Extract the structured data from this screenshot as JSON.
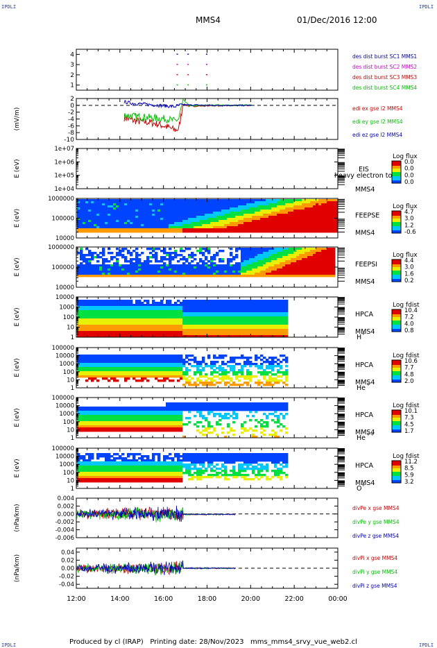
{
  "corners": {
    "tl": "IPDLI",
    "tr": "IPDLI",
    "bl": "IPDLI",
    "br": "IPDLI"
  },
  "header": {
    "title": "MMS4",
    "datetime": "01/Dec/2016 12:00"
  },
  "footer": {
    "text": "Produced by cl (IRAP)   Printing date: 28/Nov/2023   mms_mms4_srvy_vue_web2.cl"
  },
  "chart_data": [
    {
      "type": "scatter",
      "panel": "burst",
      "yticks": [
        "1",
        "2",
        "3",
        "4"
      ],
      "ylim": [
        0.5,
        4.5
      ],
      "series": [
        {
          "name": "des dist burst SC1 MMS1",
          "color": "#0000b4",
          "y": 4,
          "x": [
            16.6,
            17.1,
            17.95
          ]
        },
        {
          "name": "des dist burst SC2 MMS2",
          "color": "#d000d0",
          "y": 3,
          "x": [
            16.6,
            17.1,
            17.95
          ]
        },
        {
          "name": "des dist burst SC3 MMS3",
          "color": "#d00000",
          "y": 2,
          "x": [
            16.6,
            17.1,
            17.95
          ]
        },
        {
          "name": "des dist burst SC4 MMS4",
          "color": "#00c000",
          "y": 1,
          "x": [
            16.6,
            17.1,
            17.95
          ]
        }
      ]
    },
    {
      "type": "line",
      "panel": "edi",
      "ylabel": "(mV/m)",
      "yticks": [
        "2",
        "0",
        "-2",
        "-4",
        "-6",
        "-8",
        "-10"
      ],
      "ylim": [
        -10,
        2
      ],
      "series": [
        {
          "name": "edi ex gse l2 MMS4",
          "color": "#d00000",
          "x": [
            14.2,
            14.6,
            15.0,
            15.4,
            15.8,
            16.2,
            16.5,
            16.7,
            16.9,
            17.2,
            17.6,
            18.2,
            19.0,
            20.1
          ],
          "y": [
            -3.6,
            -4.4,
            -4.8,
            -5.0,
            -5.6,
            -6.4,
            -7.2,
            -7.0,
            0.4,
            -0.3,
            -0.2,
            -0.1,
            -0.1,
            0
          ]
        },
        {
          "name": "edi ey gse l2 MMS4",
          "color": "#00c000",
          "x": [
            14.2,
            14.6,
            15.0,
            15.4,
            15.8,
            16.2,
            16.5,
            16.7,
            16.9,
            17.2,
            17.6,
            18.2,
            19.0,
            20.1
          ],
          "y": [
            -2.8,
            -3.2,
            -3.4,
            -3.6,
            -3.8,
            -4.0,
            -4.6,
            -4.0,
            1.6,
            -0.2,
            -0.1,
            0.1,
            0,
            0
          ]
        },
        {
          "name": "edi ez gse l2 MMS4",
          "color": "#0000c8",
          "x": [
            14.2,
            14.6,
            15.0,
            15.4,
            15.8,
            16.2,
            16.5,
            16.7,
            16.9,
            17.2,
            17.6,
            18.2,
            19.0,
            20.1
          ],
          "y": [
            1.0,
            0.6,
            0.4,
            0.2,
            0,
            -0.2,
            -0.4,
            0,
            0.2,
            0.1,
            0.1,
            0,
            0,
            0
          ]
        }
      ]
    },
    {
      "type": "heatmap",
      "panel": "eis",
      "ylabel": "E (eV)",
      "yticks": [
        "1e+07",
        "1e+06",
        "1e+05",
        "1e+04"
      ],
      "instrument": "EIS",
      "overlay": "heavy electron to",
      "spacecraft": "MMS4",
      "colorbar": {
        "label": "Log flux",
        "ticks": [
          "0.0",
          "0.0",
          "0.0",
          "0.0"
        ]
      }
    },
    {
      "type": "heatmap",
      "panel": "feepse",
      "ylabel": "E (eV)",
      "yticks": [
        "1000000",
        "100000",
        "10000"
      ],
      "instrument": "FEEPSE",
      "spacecraft": "MMS4",
      "colorbar": {
        "label": "Log flux",
        "ticks": [
          "4.7",
          "3.0",
          "1.2",
          "-0.6"
        ]
      }
    },
    {
      "type": "heatmap",
      "panel": "feepsi",
      "ylabel": "E (eV)",
      "yticks": [
        "1000000",
        "100000",
        "10000"
      ],
      "instrument": "FEEPSI",
      "spacecraft": "MMS4",
      "colorbar": {
        "label": "Log flux",
        "ticks": [
          "4.4",
          "3.0",
          "1.6",
          "0.2"
        ]
      }
    },
    {
      "type": "heatmap",
      "panel": "hpca_h",
      "ylabel": "E (eV)",
      "yticks": [
        "10000",
        "1000",
        "100",
        "10",
        "1"
      ],
      "instrument": "HPCA",
      "spacecraft": "MMS4",
      "species": "H",
      "charge": "+",
      "colorbar": {
        "label": "Log fdist",
        "ticks": [
          "10.4",
          "7.2",
          "4.0",
          "0.8"
        ]
      }
    },
    {
      "type": "heatmap",
      "panel": "hpca_he1",
      "ylabel": "E (eV)",
      "yticks": [
        "100000",
        "10000",
        "1000",
        "100",
        "10",
        "1"
      ],
      "instrument": "HPCA",
      "spacecraft": "MMS4",
      "species": "He",
      "charge": "+",
      "colorbar": {
        "label": "Log fdist",
        "ticks": [
          "10.6",
          "7.7",
          "4.8",
          "2.0"
        ]
      }
    },
    {
      "type": "heatmap",
      "panel": "hpca_he2",
      "ylabel": "E (eV)",
      "yticks": [
        "100000",
        "10000",
        "1000",
        "100",
        "10",
        "1"
      ],
      "instrument": "HPCA",
      "spacecraft": "MMS4",
      "species": "He",
      "charge": "++",
      "colorbar": {
        "label": "Log fdist",
        "ticks": [
          "10.1",
          "7.3",
          "4.5",
          "1.7"
        ]
      }
    },
    {
      "type": "heatmap",
      "panel": "hpca_o",
      "ylabel": "E (eV)",
      "yticks": [
        "100000",
        "10000",
        "1000",
        "100",
        "10",
        "1"
      ],
      "instrument": "HPCA",
      "spacecraft": "MMS4",
      "species": "O",
      "charge": "+",
      "colorbar": {
        "label": "Log fdist",
        "ticks": [
          "11.2",
          "8.5",
          "5.9",
          "3.2"
        ]
      }
    },
    {
      "type": "line",
      "panel": "divpe",
      "ylabel": "(nPa/km)",
      "yticks": [
        "0.004",
        "0.002",
        "0.000",
        "-0.002",
        "-0.004",
        "-0.006"
      ],
      "ylim": [
        -0.006,
        0.004
      ],
      "series": [
        {
          "name": "divPe x gse MMS4",
          "color": "#d00000"
        },
        {
          "name": "divPe y gse MMS4",
          "color": "#00c000"
        },
        {
          "name": "divPe z gse MMS4",
          "color": "#0000c8"
        }
      ]
    },
    {
      "type": "line",
      "panel": "divpi",
      "ylabel": "(nPa/km)",
      "yticks": [
        "0.04",
        "0.02",
        "0.00",
        "-0.02",
        "-0.04"
      ],
      "ylim": [
        -0.05,
        0.05
      ],
      "series": [
        {
          "name": "divPi x gse MMS4",
          "color": "#d00000"
        },
        {
          "name": "divPi y gse MMS4",
          "color": "#00c000"
        },
        {
          "name": "divPi z gse MMS4",
          "color": "#0000c8"
        }
      ]
    }
  ],
  "xaxis": {
    "ticks": [
      "12:00",
      "14:00",
      "16:00",
      "18:00",
      "20:00",
      "22:00",
      "00:00"
    ]
  }
}
